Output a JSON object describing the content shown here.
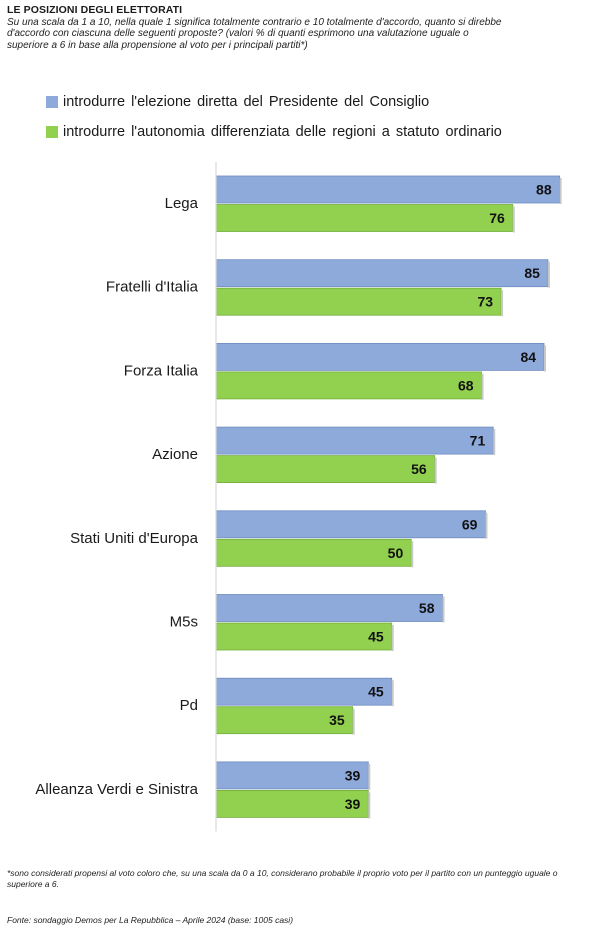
{
  "title": "LE POSIZIONI DEGLI ELETTORATI",
  "subtitle": "Su una scala da 1 a 10, nella quale 1 significa totalmente contrario e 10 totalmente d'accordo, quanto si direbbe d'accordo con ciascuna delle seguenti proposte? (valori % di quanti esprimono una valutazione uguale o superiore a 6 in base alla propensione al voto per i principali partiti*)",
  "note": "*sono considerati propensi al voto coloro che, su una scala da 0 a 10, considerano probabile il proprio voto per il partito con un punteggio uguale o superiore a 6.",
  "source": "Fonte: sondaggio Demos per La Repubblica – Aprile 2024 (base: 1005 casi)",
  "chart_data": {
    "type": "bar",
    "orientation": "horizontal",
    "categories": [
      "Lega",
      "Fratelli d'Italia",
      "Forza Italia",
      "Azione",
      "Stati Uniti d'Europa",
      "M5s",
      "Pd",
      "Alleanza Verdi e Sinistra"
    ],
    "series": [
      {
        "name": "introdurre  l'elezione diretta del Presidente del Consiglio",
        "color": "#8eaadb",
        "values": [
          88,
          85,
          84,
          71,
          69,
          58,
          45,
          39
        ]
      },
      {
        "name": "introdurre  l'autonomia differenziata  delle regioni  a statuto ordinario",
        "color": "#92d050",
        "values": [
          76,
          73,
          68,
          56,
          50,
          45,
          35,
          39
        ]
      }
    ],
    "xlim": [
      0,
      100
    ],
    "data_labels": true,
    "legend_position": "top",
    "grid": false
  }
}
